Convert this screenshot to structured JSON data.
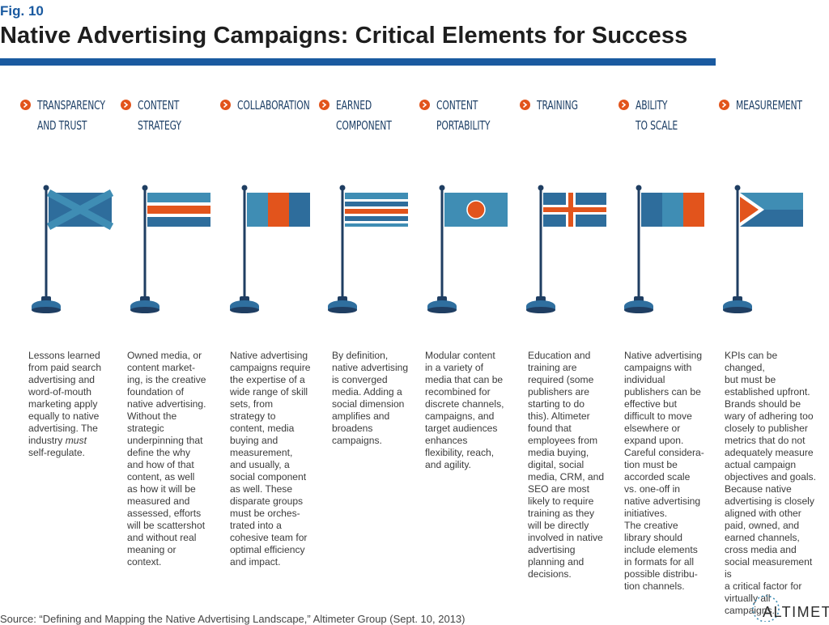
{
  "figure_label": "Fig. 10",
  "title": "Native Advertising Campaigns: Critical Elements for Success",
  "colors": {
    "blue": "#1a5aa0",
    "navy": "#1f3e62",
    "mid_blue": "#2e6d9c",
    "light_blue": "#3f8db4",
    "orange": "#e2541c",
    "base": "#2f6f9f"
  },
  "columns": [
    {
      "heading": "TRANSPARENCY\nAND TRUST",
      "flag": "saltire",
      "description_parts": [
        "Lessons learned\nfrom paid search\nadvertising and\nword-of-mouth\nmarketing apply\nequally to native\nadvertising. The\nindustry ",
        "must",
        "\nself-regulate."
      ]
    },
    {
      "heading": "CONTENT\nSTRATEGY",
      "flag": "horizontal-stripes",
      "description": "Owned media, or\ncontent market-\ning, is the creative\nfoundation of\nnative advertising.\nWithout the\nstrategic\nunderpinning that\ndefine the why\nand how of that\ncontent, as well\nas how it will be\nmeasured and\nassessed, efforts\nwill be scattershot\nand without real\nmeaning or\ncontext."
    },
    {
      "heading": "COLLABORATION",
      "flag": "vertical-tricolor",
      "description": "Native advertising\ncampaigns require\nthe expertise of a\nwide range of skill\nsets, from\nstrategy to\ncontent, media\nbuying and\nmeasurement,\nand usually, a\nsocial component\nas well. These\ndisparate groups\nmust be orches-\ntrated into a\ncohesive team for\noptimal efficiency\nand impact."
    },
    {
      "heading": "EARNED\nCOMPONENT",
      "flag": "multi-stripes",
      "description": "By definition,\nnative advertising\nis converged\nmedia. Adding a\nsocial dimension\namplifies and\nbroadens\ncampaigns."
    },
    {
      "heading": "CONTENT\nPORTABILITY",
      "flag": "disc",
      "description": "Modular content\nin a variety of\nmedia that can be\nrecombined for\ndiscrete channels,\ncampaigns, and\ntarget audiences\nenhances\nflexibility, reach,\nand agility."
    },
    {
      "heading": "TRAINING",
      "flag": "cross",
      "description": "Education and\ntraining are\nrequired (some\npublishers are\nstarting to do\nthis). Altimeter\nfound that\nemployees from\nmedia buying,\ndigital, social\nmedia, CRM, and\nSEO are most\nlikely to require\ntraining as they\nwill be directly\ninvolved in native\nadvertising\nplanning and\ndecisions."
    },
    {
      "heading": "ABILITY\nTO SCALE",
      "flag": "bicolor",
      "description": "Native advertising\ncampaigns with\nindividual\npublishers can be\neffective but\ndifficult to move\nelsewhere or\nexpand upon.\nCareful considera-\ntion must be\naccorded scale\nvs. one-off in\nnative advertising\ninitiatives.\nThe creative\nlibrary should\ninclude elements\nin formats for all\npossible distribu-\ntion channels."
    },
    {
      "heading": "MEASUREMENT",
      "flag": "chevron",
      "description": "KPIs can be changed,\nbut must be\nestablished upfront.\nBrands should be\nwary of adhering too\nclosely to publisher\nmetrics that do not\nadequately measure\nactual campaign\nobjectives and goals.\nBecause native\nadvertising is closely\naligned with other\npaid, owned, and\nearned channels,\ncross media and\nsocial measurement is\na critical factor for\nvirtually all campaigns."
    }
  ],
  "source": "Source: “Defining and Mapping the Native Advertising Landscape,” Altimeter Group (Sept. 10, 2013)",
  "logo": {
    "text": "ALTIMETER",
    "icon": "altimeter-logo-icon"
  }
}
